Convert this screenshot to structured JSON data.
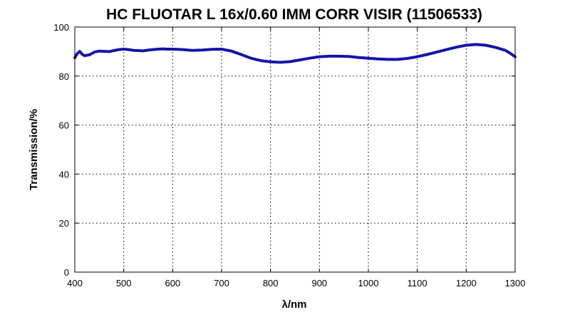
{
  "chart_data": {
    "type": "line",
    "title": "HC FLUOTAR L 16x/0.60 IMM CORR VISIR (11506533)",
    "xlabel": "λ/nm",
    "ylabel": "Transmission/%",
    "xlim": [
      400,
      1300
    ],
    "ylim": [
      0,
      100
    ],
    "xticks": [
      400,
      500,
      600,
      700,
      800,
      900,
      1000,
      1100,
      1200,
      1300
    ],
    "yticks": [
      0,
      20,
      40,
      60,
      80,
      100
    ],
    "grid": true,
    "series": [
      {
        "color": "#1414aa",
        "x": [
          400,
          405,
          410,
          415,
          420,
          430,
          440,
          450,
          460,
          470,
          480,
          490,
          500,
          510,
          520,
          530,
          540,
          550,
          560,
          570,
          580,
          590,
          600,
          620,
          640,
          660,
          680,
          700,
          720,
          740,
          760,
          780,
          800,
          820,
          840,
          860,
          880,
          900,
          920,
          940,
          960,
          980,
          1000,
          1020,
          1040,
          1060,
          1080,
          1100,
          1120,
          1140,
          1160,
          1180,
          1200,
          1220,
          1240,
          1260,
          1280,
          1290,
          1300
        ],
        "y": [
          87.5,
          89.2,
          90.1,
          88.9,
          88.3,
          88.7,
          89.8,
          90.2,
          90.1,
          90.0,
          90.4,
          90.8,
          91.0,
          90.8,
          90.5,
          90.4,
          90.3,
          90.6,
          90.8,
          91.0,
          91.1,
          91.0,
          91.0,
          90.8,
          90.5,
          90.6,
          90.9,
          91.0,
          90.2,
          88.8,
          87.3,
          86.3,
          85.8,
          85.6,
          85.9,
          86.6,
          87.3,
          87.9,
          88.1,
          88.1,
          88.0,
          87.6,
          87.3,
          87.0,
          86.8,
          86.8,
          87.2,
          87.9,
          88.8,
          89.8,
          90.8,
          91.8,
          92.6,
          92.9,
          92.6,
          91.7,
          90.5,
          89.3,
          87.9
        ]
      }
    ]
  }
}
